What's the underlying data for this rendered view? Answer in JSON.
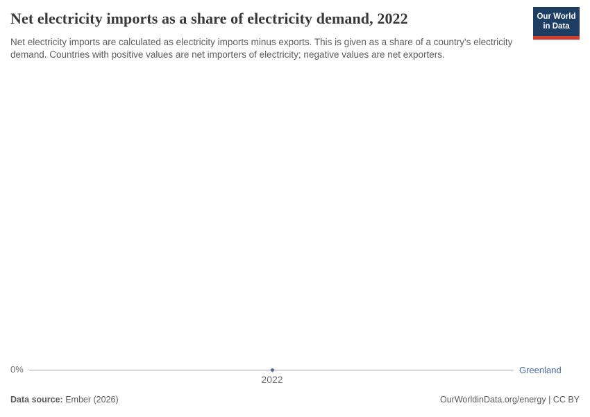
{
  "header": {
    "title": "Net electricity imports as a share of electricity demand, 2022",
    "subtitle": "Net electricity imports are calculated as electricity imports minus exports. This is given as a share of a country's electricity demand. Countries with positive values are net importers of electricity; negative values are net exporters.",
    "logo": {
      "line1": "Our World",
      "line2": "in Data"
    }
  },
  "chart_data": {
    "type": "line",
    "title": "Net electricity imports as a share of electricity demand, 2022",
    "x": [
      2022
    ],
    "x_tick_labels": [
      "2022"
    ],
    "y_tick_labels": [
      "0%"
    ],
    "series": [
      {
        "name": "Greenland",
        "values": [
          0
        ]
      }
    ],
    "xlabel": "",
    "ylabel": "",
    "grid": false,
    "legend_position": "end-of-line"
  },
  "footer": {
    "datasource_label": "Data source:",
    "datasource_value": " Ember (2026)",
    "url_note": "OurWorldinData.org/energy | CC BY"
  },
  "colors": {
    "series_blue": "#4c6a9c",
    "logo_navy": "#1d3d63",
    "logo_red": "#d93a2b",
    "axis_line_gray": "#a5a5a5",
    "title_gray": "#383838",
    "text_gray": "#5b5b5b"
  }
}
